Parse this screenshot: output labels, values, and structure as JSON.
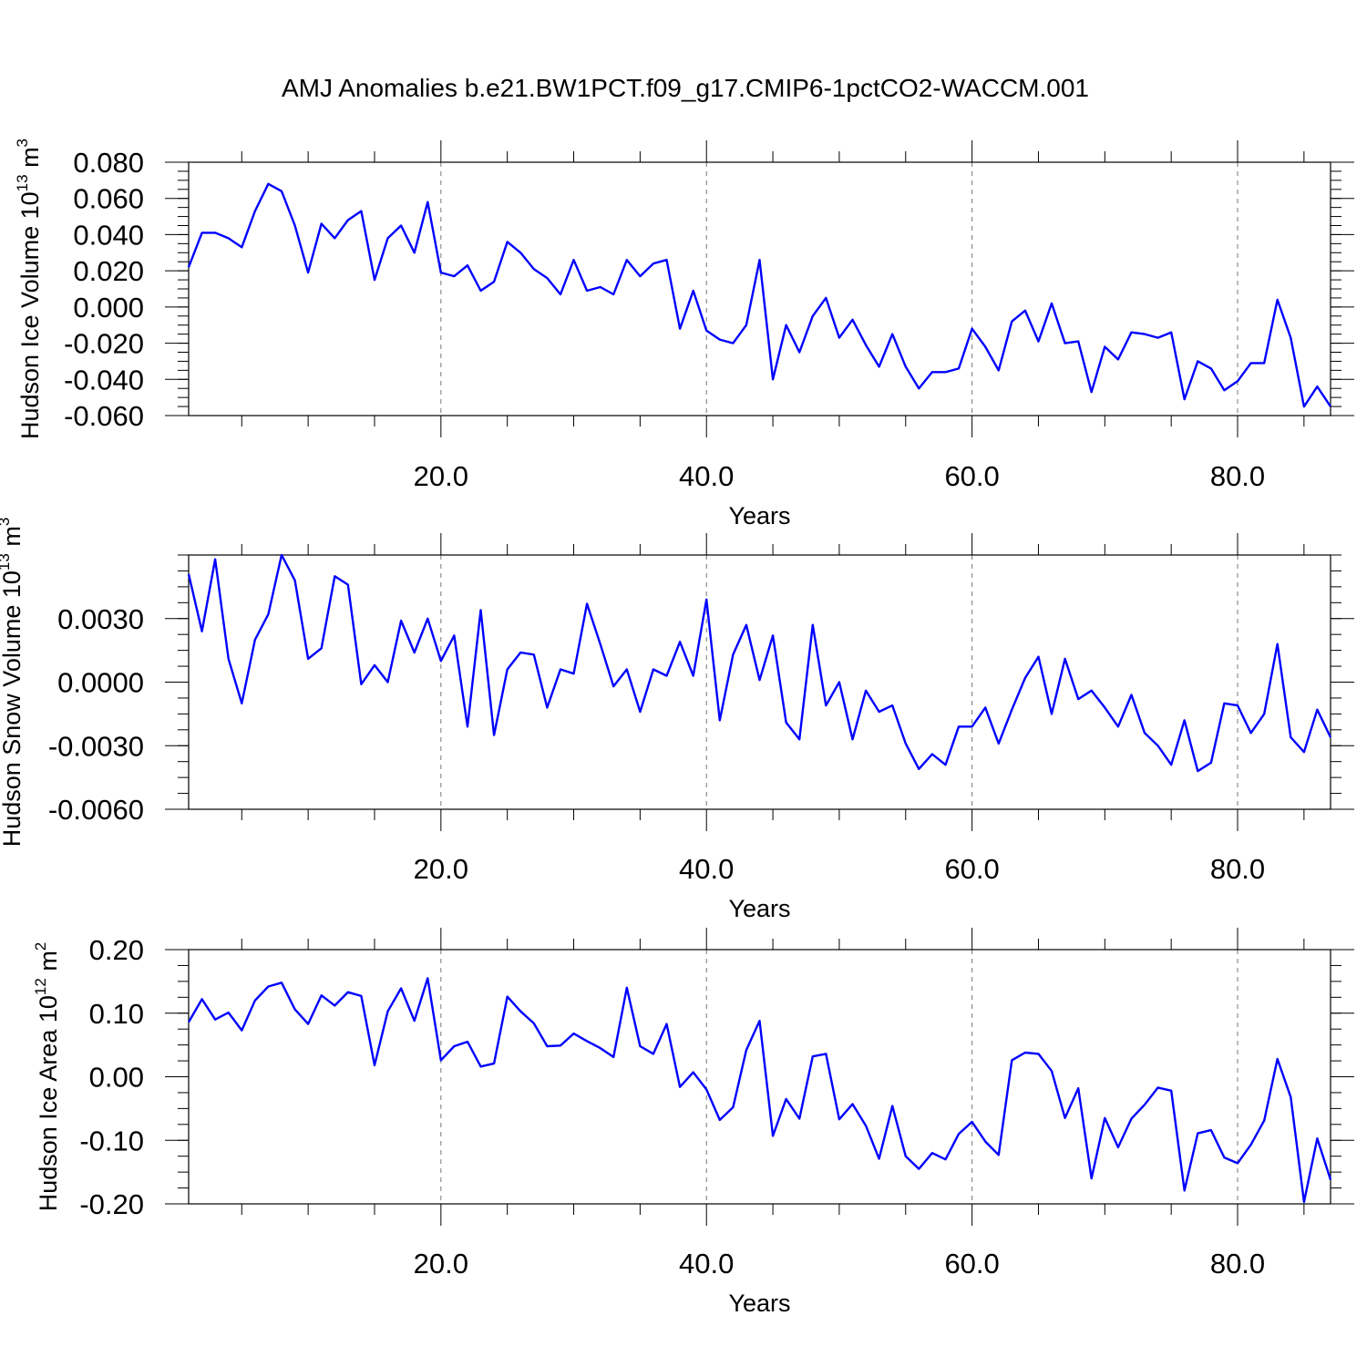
{
  "title": "AMJ Anomalies b.e21.BW1PCT.f09_g17.CMIP6-1pctCO2-WACCM.001",
  "line_color": "#0000ff",
  "chart_data": [
    {
      "type": "line",
      "ylabel_text": "Hudson Ice Volume 10",
      "ylabel_exp": "13",
      "ylabel_unit": " m",
      "ylabel_unit_exp": "3",
      "xlabel": "Years",
      "xlim": [
        1,
        87
      ],
      "ylim": [
        -0.06,
        0.08
      ],
      "x_ticks": [
        20,
        40,
        60,
        80
      ],
      "x_tick_labels": [
        "20.0",
        "40.0",
        "60.0",
        "80.0"
      ],
      "y_ticks": [
        0.08,
        0.06,
        0.04,
        0.02,
        0.0,
        -0.02,
        -0.04,
        -0.06
      ],
      "y_tick_labels": [
        "0.080",
        "0.060",
        "0.040",
        "0.020",
        "0.000",
        "-0.020",
        "-0.040",
        "-0.060"
      ],
      "x": [
        1,
        2,
        3,
        4,
        5,
        6,
        7,
        8,
        9,
        10,
        11,
        12,
        13,
        14,
        15,
        16,
        17,
        18,
        19,
        20,
        21,
        22,
        23,
        24,
        25,
        26,
        27,
        28,
        29,
        30,
        31,
        32,
        33,
        34,
        35,
        36,
        37,
        38,
        39,
        40,
        41,
        42,
        43,
        44,
        45,
        46,
        47,
        48,
        49,
        50,
        51,
        52,
        53,
        54,
        55,
        56,
        57,
        58,
        59,
        60,
        61,
        62,
        63,
        64,
        65,
        66,
        67,
        68,
        69,
        70,
        71,
        72,
        73,
        74,
        75,
        76,
        77,
        78,
        79,
        80,
        81,
        82,
        83,
        84,
        85,
        86,
        87
      ],
      "series": [
        {
          "values": [
            0.022,
            0.041,
            0.041,
            0.038,
            0.033,
            0.053,
            0.068,
            0.064,
            0.045,
            0.019,
            0.046,
            0.038,
            0.048,
            0.053,
            0.015,
            0.038,
            0.045,
            0.03,
            0.058,
            0.019,
            0.017,
            0.023,
            0.009,
            0.014,
            0.036,
            0.03,
            0.021,
            0.016,
            0.007,
            0.026,
            0.009,
            0.011,
            0.007,
            0.026,
            0.017,
            0.024,
            0.026,
            -0.012,
            0.009,
            -0.013,
            -0.018,
            -0.02,
            -0.01,
            0.026,
            -0.04,
            -0.01,
            -0.025,
            -0.005,
            0.005,
            -0.017,
            -0.007,
            -0.021,
            -0.033,
            -0.015,
            -0.033,
            -0.045,
            -0.036,
            -0.036,
            -0.034,
            -0.012,
            -0.022,
            -0.035,
            -0.008,
            -0.002,
            -0.019,
            0.002,
            -0.02,
            -0.019,
            -0.047,
            -0.022,
            -0.029,
            -0.014,
            -0.015,
            -0.017,
            -0.014,
            -0.051,
            -0.03,
            -0.034,
            -0.046,
            -0.041,
            -0.031,
            -0.031,
            0.004,
            -0.017,
            -0.055,
            -0.044,
            -0.055
          ]
        }
      ]
    },
    {
      "type": "line",
      "ylabel_text": "Hudson Snow Volume 10",
      "ylabel_exp": "13",
      "ylabel_unit": " m",
      "ylabel_unit_exp": "3",
      "xlabel": "Years",
      "xlim": [
        1,
        87
      ],
      "ylim": [
        -0.006,
        0.006
      ],
      "x_ticks": [
        20,
        40,
        60,
        80
      ],
      "x_tick_labels": [
        "20.0",
        "40.0",
        "60.0",
        "80.0"
      ],
      "y_ticks": [
        0.003,
        0.0,
        -0.003,
        -0.006
      ],
      "y_tick_labels": [
        "0.0030",
        "0.0000",
        "-0.0030",
        "-0.0060"
      ],
      "x": [
        1,
        2,
        3,
        4,
        5,
        6,
        7,
        8,
        9,
        10,
        11,
        12,
        13,
        14,
        15,
        16,
        17,
        18,
        19,
        20,
        21,
        22,
        23,
        24,
        25,
        26,
        27,
        28,
        29,
        30,
        31,
        32,
        33,
        34,
        35,
        36,
        37,
        38,
        39,
        40,
        41,
        42,
        43,
        44,
        45,
        46,
        47,
        48,
        49,
        50,
        51,
        52,
        53,
        54,
        55,
        56,
        57,
        58,
        59,
        60,
        61,
        62,
        63,
        64,
        65,
        66,
        67,
        68,
        69,
        70,
        71,
        72,
        73,
        74,
        75,
        76,
        77,
        78,
        79,
        80,
        81,
        82,
        83,
        84,
        85,
        86,
        87
      ],
      "series": [
        {
          "values": [
            0.0051,
            0.0024,
            0.0058,
            0.0011,
            -0.001,
            0.002,
            0.0032,
            0.006,
            0.0048,
            0.0011,
            0.0016,
            0.005,
            0.0046,
            -0.0001,
            0.0008,
            0.0,
            0.0029,
            0.0014,
            0.003,
            0.001,
            0.0022,
            -0.0021,
            0.0034,
            -0.0025,
            0.0006,
            0.0014,
            0.0013,
            -0.0012,
            0.0006,
            0.0004,
            0.0037,
            0.0018,
            -0.0002,
            0.0006,
            -0.0014,
            0.0006,
            0.0003,
            0.0019,
            0.0003,
            0.0039,
            -0.0018,
            0.0013,
            0.0027,
            0.0001,
            0.0022,
            -0.0019,
            -0.0027,
            0.0027,
            -0.0011,
            -0.0,
            -0.0027,
            -0.0004,
            -0.0014,
            -0.0011,
            -0.0029,
            -0.0041,
            -0.0034,
            -0.0039,
            -0.0021,
            -0.0021,
            -0.0012,
            -0.0029,
            -0.0013,
            0.0002,
            0.0012,
            -0.0015,
            0.0011,
            -0.0008,
            -0.0004,
            -0.0012,
            -0.0021,
            -0.0006,
            -0.0024,
            -0.003,
            -0.0039,
            -0.0018,
            -0.0042,
            -0.0038,
            -0.001,
            -0.0011,
            -0.0024,
            -0.0015,
            0.0018,
            -0.0026,
            -0.0033,
            -0.0013,
            -0.0026
          ]
        }
      ]
    },
    {
      "type": "line",
      "ylabel_text": "Hudson Ice Area 10",
      "ylabel_exp": "12",
      "ylabel_unit": " m",
      "ylabel_unit_exp": "2",
      "xlabel": "Years",
      "xlim": [
        1,
        87
      ],
      "ylim": [
        -0.2,
        0.2
      ],
      "x_ticks": [
        20,
        40,
        60,
        80
      ],
      "x_tick_labels": [
        "20.0",
        "40.0",
        "60.0",
        "80.0"
      ],
      "y_ticks": [
        0.2,
        0.1,
        0.0,
        -0.1,
        -0.2
      ],
      "y_tick_labels": [
        "0.20",
        "0.10",
        "0.00",
        "-0.10",
        "-0.20"
      ],
      "x": [
        1,
        2,
        3,
        4,
        5,
        6,
        7,
        8,
        9,
        10,
        11,
        12,
        13,
        14,
        15,
        16,
        17,
        18,
        19,
        20,
        21,
        22,
        23,
        24,
        25,
        26,
        27,
        28,
        29,
        30,
        31,
        32,
        33,
        34,
        35,
        36,
        37,
        38,
        39,
        40,
        41,
        42,
        43,
        44,
        45,
        46,
        47,
        48,
        49,
        50,
        51,
        52,
        53,
        54,
        55,
        56,
        57,
        58,
        59,
        60,
        61,
        62,
        63,
        64,
        65,
        66,
        67,
        68,
        69,
        70,
        71,
        72,
        73,
        74,
        75,
        76,
        77,
        78,
        79,
        80,
        81,
        82,
        83,
        84,
        85,
        86,
        87
      ],
      "series": [
        {
          "values": [
            0.086,
            0.122,
            0.09,
            0.101,
            0.073,
            0.12,
            0.142,
            0.148,
            0.106,
            0.083,
            0.128,
            0.112,
            0.133,
            0.127,
            0.018,
            0.103,
            0.139,
            0.088,
            0.155,
            0.026,
            0.048,
            0.055,
            0.016,
            0.021,
            0.126,
            0.103,
            0.084,
            0.048,
            0.049,
            0.068,
            0.056,
            0.045,
            0.031,
            0.14,
            0.048,
            0.036,
            0.083,
            -0.016,
            0.007,
            -0.02,
            -0.068,
            -0.048,
            0.042,
            0.088,
            -0.093,
            -0.035,
            -0.066,
            0.032,
            0.036,
            -0.067,
            -0.043,
            -0.077,
            -0.129,
            -0.046,
            -0.125,
            -0.145,
            -0.12,
            -0.13,
            -0.09,
            -0.071,
            -0.102,
            -0.123,
            0.026,
            0.038,
            0.036,
            0.009,
            -0.065,
            -0.018,
            -0.16,
            -0.065,
            -0.111,
            -0.066,
            -0.044,
            -0.017,
            -0.022,
            -0.179,
            -0.089,
            -0.084,
            -0.127,
            -0.136,
            -0.107,
            -0.069,
            0.028,
            -0.032,
            -0.197,
            -0.097,
            -0.162
          ]
        }
      ]
    }
  ]
}
